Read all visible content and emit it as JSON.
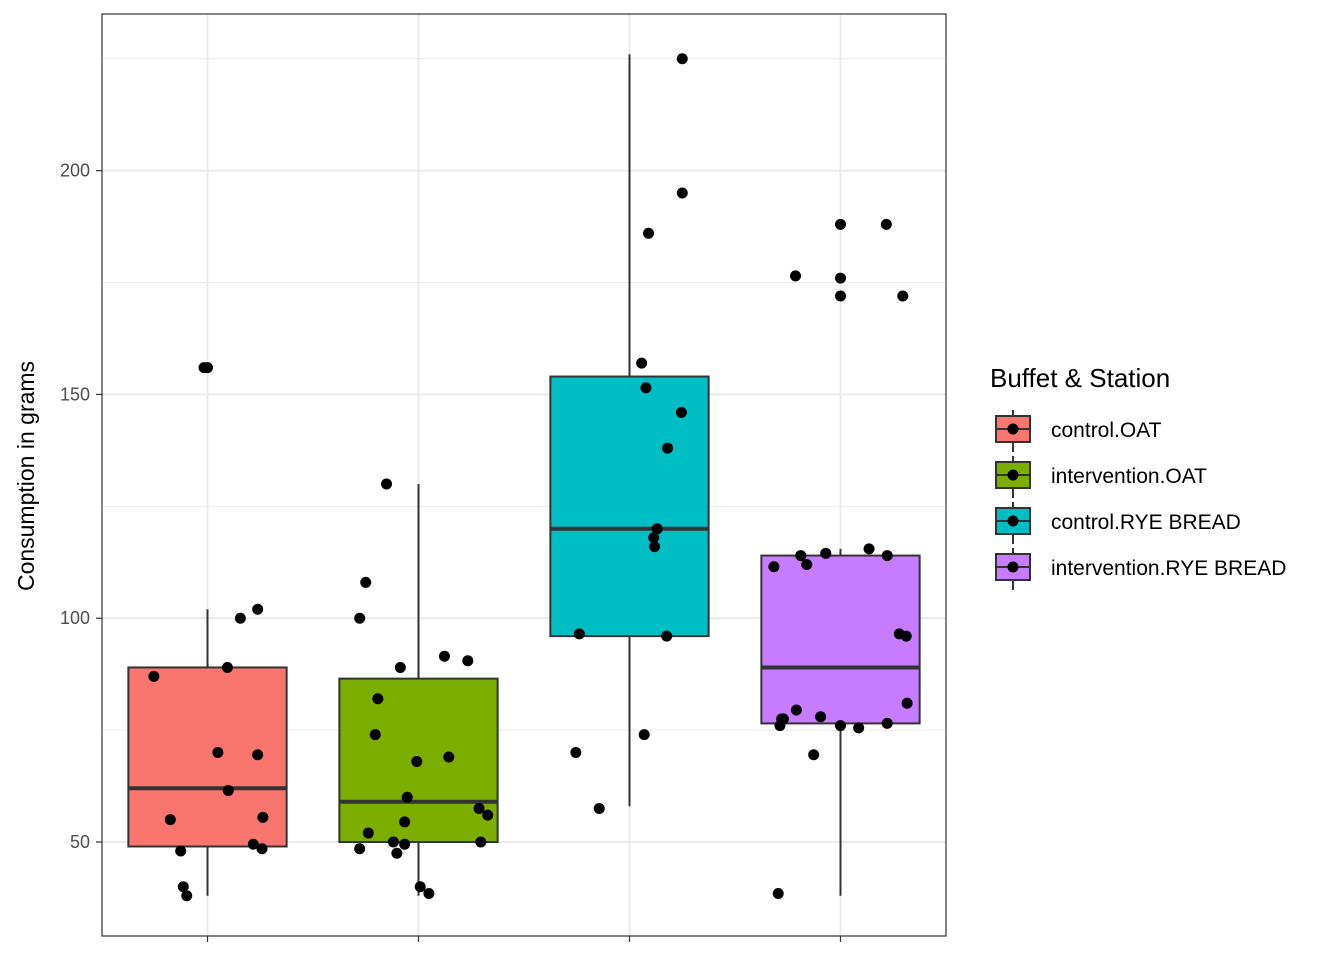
{
  "chart_data": {
    "type": "box",
    "title": "",
    "xlabel": "",
    "ylabel": "Consumption in grams",
    "ylim": [
      29,
      235
    ],
    "y_ticks": [
      50,
      100,
      150,
      200
    ],
    "y_tick_labels": [
      "50",
      "100",
      "150",
      "200"
    ],
    "grid": true,
    "legend": {
      "title": "Buffet & Station",
      "placement": "right"
    },
    "series": [
      {
        "name": "control.OAT",
        "color": "#F8766D",
        "box": {
          "whisker_low": 38,
          "q1": 49,
          "median": 62,
          "q3": 89,
          "whisker_high": 102
        },
        "points": [
          {
            "x": -0.62,
            "y": 87
          },
          {
            "x": -0.43,
            "y": 55
          },
          {
            "x": -0.31,
            "y": 48
          },
          {
            "x": -0.28,
            "y": 40
          },
          {
            "x": -0.24,
            "y": 38
          },
          {
            "x": -0.04,
            "y": 156
          },
          {
            "x": 0.0,
            "y": 156
          },
          {
            "x": 0.12,
            "y": 70
          },
          {
            "x": 0.23,
            "y": 89
          },
          {
            "x": 0.24,
            "y": 61.5
          },
          {
            "x": 0.38,
            "y": 100
          },
          {
            "x": 0.53,
            "y": 49.5
          },
          {
            "x": 0.58,
            "y": 102
          },
          {
            "x": 0.58,
            "y": 69.5
          },
          {
            "x": 0.63,
            "y": 48.5
          },
          {
            "x": 0.64,
            "y": 55.5
          }
        ]
      },
      {
        "name": "intervention.OAT",
        "color": "#7CAE00",
        "box": {
          "whisker_low": 38,
          "q1": 50,
          "median": 59,
          "q3": 86.5,
          "whisker_high": 130
        },
        "points": [
          {
            "x": -0.68,
            "y": 48.5
          },
          {
            "x": -0.68,
            "y": 100
          },
          {
            "x": -0.61,
            "y": 108
          },
          {
            "x": -0.58,
            "y": 52
          },
          {
            "x": -0.5,
            "y": 74
          },
          {
            "x": -0.47,
            "y": 82
          },
          {
            "x": -0.37,
            "y": 130
          },
          {
            "x": -0.29,
            "y": 50
          },
          {
            "x": -0.25,
            "y": 47.5
          },
          {
            "x": -0.21,
            "y": 89
          },
          {
            "x": -0.16,
            "y": 54.5
          },
          {
            "x": -0.13,
            "y": 60
          },
          {
            "x": -0.16,
            "y": 49.5
          },
          {
            "x": -0.02,
            "y": 68
          },
          {
            "x": 0.02,
            "y": 40
          },
          {
            "x": 0.12,
            "y": 38.5
          },
          {
            "x": 0.3,
            "y": 91.5
          },
          {
            "x": 0.35,
            "y": 69
          },
          {
            "x": 0.57,
            "y": 90.5
          },
          {
            "x": 0.7,
            "y": 57.5
          },
          {
            "x": 0.72,
            "y": 50
          },
          {
            "x": 0.8,
            "y": 56
          }
        ]
      },
      {
        "name": "control.RYE BREAD",
        "color": "#00BFC4",
        "box": {
          "whisker_low": 58,
          "q1": 96,
          "median": 120,
          "q3": 154,
          "whisker_high": 226
        },
        "points": [
          {
            "x": -0.62,
            "y": 70
          },
          {
            "x": -0.58,
            "y": 96.5
          },
          {
            "x": -0.35,
            "y": 57.5
          },
          {
            "x": 0.14,
            "y": 157
          },
          {
            "x": 0.17,
            "y": 74
          },
          {
            "x": 0.19,
            "y": 151.5
          },
          {
            "x": 0.22,
            "y": 186
          },
          {
            "x": 0.28,
            "y": 118
          },
          {
            "x": 0.29,
            "y": 116
          },
          {
            "x": 0.32,
            "y": 120
          },
          {
            "x": 0.43,
            "y": 96
          },
          {
            "x": 0.44,
            "y": 138
          },
          {
            "x": 0.6,
            "y": 146
          },
          {
            "x": 0.61,
            "y": 195
          },
          {
            "x": 0.61,
            "y": 225
          }
        ]
      },
      {
        "name": "intervention.RYE BREAD",
        "color": "#C77CFF",
        "box": {
          "whisker_low": 38,
          "q1": 76.5,
          "median": 89,
          "q3": 114,
          "whisker_high": 115.5
        },
        "points": [
          {
            "x": -0.77,
            "y": 111.5
          },
          {
            "x": -0.72,
            "y": 38.5
          },
          {
            "x": -0.7,
            "y": 76
          },
          {
            "x": -0.68,
            "y": 77.5
          },
          {
            "x": -0.66,
            "y": 77.5
          },
          {
            "x": -0.51,
            "y": 79.5
          },
          {
            "x": -0.52,
            "y": 176.5
          },
          {
            "x": -0.46,
            "y": 114
          },
          {
            "x": -0.39,
            "y": 112
          },
          {
            "x": -0.31,
            "y": 69.5
          },
          {
            "x": -0.23,
            "y": 78
          },
          {
            "x": -0.17,
            "y": 114.5
          },
          {
            "x": 0.0,
            "y": 188
          },
          {
            "x": 0.0,
            "y": 176
          },
          {
            "x": 0.0,
            "y": 172
          },
          {
            "x": 0.0,
            "y": 76
          },
          {
            "x": 0.21,
            "y": 75.5
          },
          {
            "x": 0.33,
            "y": 115.5
          },
          {
            "x": 0.53,
            "y": 188
          },
          {
            "x": 0.54,
            "y": 76.5
          },
          {
            "x": 0.54,
            "y": 114
          },
          {
            "x": 0.68,
            "y": 96.5
          },
          {
            "x": 0.72,
            "y": 172
          },
          {
            "x": 0.76,
            "y": 96
          },
          {
            "x": 0.77,
            "y": 81
          }
        ]
      }
    ]
  }
}
